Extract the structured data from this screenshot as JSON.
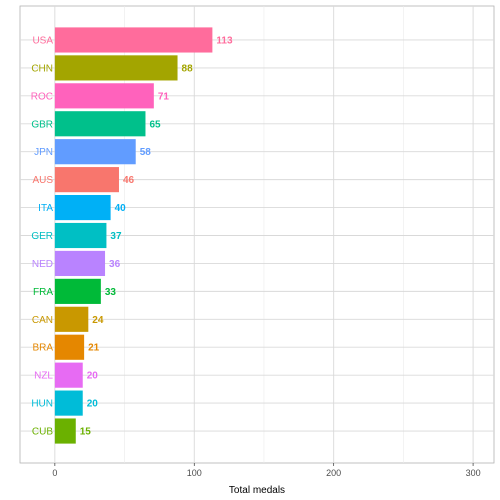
{
  "chart_data": {
    "type": "bar",
    "orientation": "horizontal",
    "xlabel": "Total medals",
    "ylabel": "",
    "xlim": [
      -25,
      315
    ],
    "x_ticks": [
      0,
      100,
      200,
      300
    ],
    "grid": true,
    "legend": "none",
    "data_labels": true,
    "categories": [
      "USA",
      "CHN",
      "ROC",
      "GBR",
      "JPN",
      "AUS",
      "ITA",
      "GER",
      "NED",
      "FRA",
      "CAN",
      "BRA",
      "NZL",
      "HUN",
      "CUB"
    ],
    "values": [
      113,
      88,
      71,
      65,
      58,
      46,
      40,
      37,
      36,
      33,
      24,
      21,
      20,
      20,
      15
    ],
    "colors": [
      "#FF6C9C",
      "#A3A500",
      "#FF62BC",
      "#00C08B",
      "#619CFF",
      "#F8766D",
      "#00B0F6",
      "#00BFC4",
      "#B983FF",
      "#00BA38",
      "#C99800",
      "#E58700",
      "#E76BF3",
      "#00BCD8",
      "#6BB100"
    ]
  }
}
